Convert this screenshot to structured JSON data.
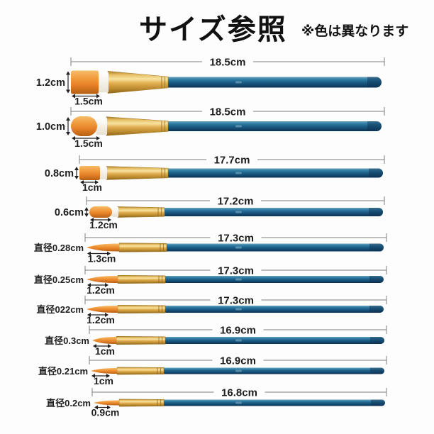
{
  "title": "サイズ参照",
  "note": "※色は異なります",
  "colors": {
    "background": "#fdfdfd",
    "handle_blue": "#1c5f88",
    "handle_blue_dark": "#0a3153",
    "handle_blue_light": "#69a3bd",
    "ferrule_gold": "#e0ad4e",
    "ferrule_gold_light": "#f8e3a0",
    "ferrule_gold_dark": "#8d621c",
    "bristle_orange": "#e8832a",
    "bristle_orange_light": "#f7bc69",
    "bristle_orange_dark": "#b55f13",
    "dimension_line": "#7e7e7e",
    "label_text": "#1e1e1e"
  },
  "brushes": [
    {
      "head": "flat",
      "length": "18.5cm",
      "head_size": "1.2cm",
      "head_width": "1.5cm"
    },
    {
      "head": "filbert",
      "length": "18.5cm",
      "head_size": "1.0cm",
      "head_width": "1.5cm"
    },
    {
      "head": "flat",
      "length": "17.7cm",
      "head_size": "0.8cm",
      "head_width": "1cm"
    },
    {
      "head": "filbert",
      "length": "17.2cm",
      "head_size": "0.6cm",
      "head_width": "1.2cm"
    },
    {
      "head": "round",
      "length": "17.3cm",
      "head_size": "直径0.28cm",
      "head_width": "1.3cm"
    },
    {
      "head": "round",
      "length": "17.3cm",
      "head_size": "直径0.25cm",
      "head_width": "1.2cm"
    },
    {
      "head": "round",
      "length": "17.3cm",
      "head_size": "直径022cm",
      "head_width": "1.2cm"
    },
    {
      "head": "round",
      "length": "16.9cm",
      "head_size": "直径0.3cm",
      "head_width": "1cm"
    },
    {
      "head": "round",
      "length": "16.9cm",
      "head_size": "直径0.21cm",
      "head_width": "1cm"
    },
    {
      "head": "round",
      "length": "16.8cm",
      "head_size": "直径0.2cm",
      "head_width": "0.9cm"
    }
  ]
}
